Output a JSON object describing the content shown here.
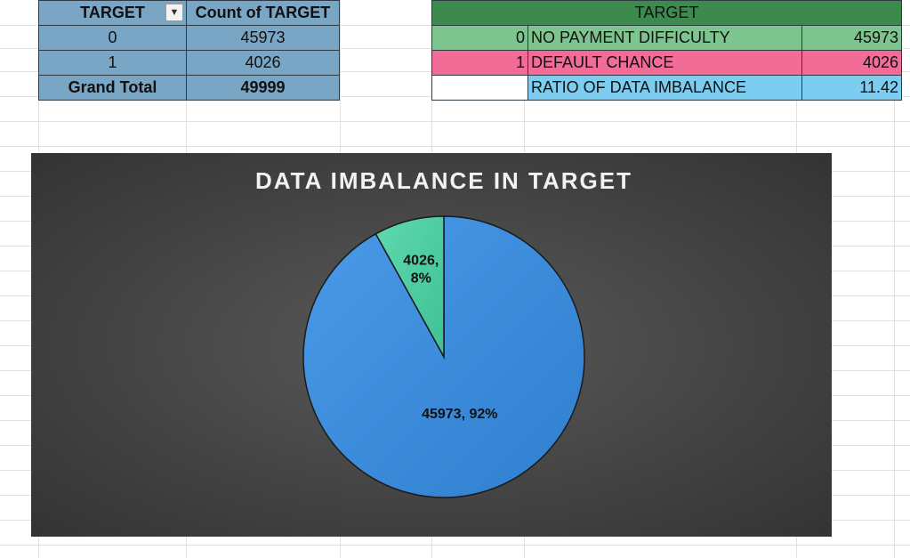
{
  "pivot": {
    "header": {
      "col1": "TARGET",
      "col2": "Count of TARGET"
    },
    "rows": [
      {
        "label": "0",
        "value": "45973"
      },
      {
        "label": "1",
        "value": "4026"
      }
    ],
    "total": {
      "label": "Grand Total",
      "value": "49999"
    }
  },
  "summary": {
    "title": "TARGET",
    "rows": [
      {
        "key": "0",
        "label": "NO PAYMENT DIFFICULTY",
        "value": "45973"
      },
      {
        "key": "1",
        "label": "DEFAULT CHANCE",
        "value": "4026"
      },
      {
        "key": "",
        "label": "RATIO OF DATA IMBALANCE",
        "value": "11.42"
      }
    ]
  },
  "colors": {
    "slice0": "#3f8fdf",
    "slice1": "#4ecfa5",
    "chart_bg": "#454545"
  },
  "chart_data": {
    "type": "pie",
    "title": "DATA IMBALANCE IN TARGET",
    "categories": [
      "0",
      "1"
    ],
    "values": [
      45973,
      4026
    ],
    "labels": [
      "45973, 92%",
      "4026, 8%"
    ],
    "legend": "none"
  }
}
